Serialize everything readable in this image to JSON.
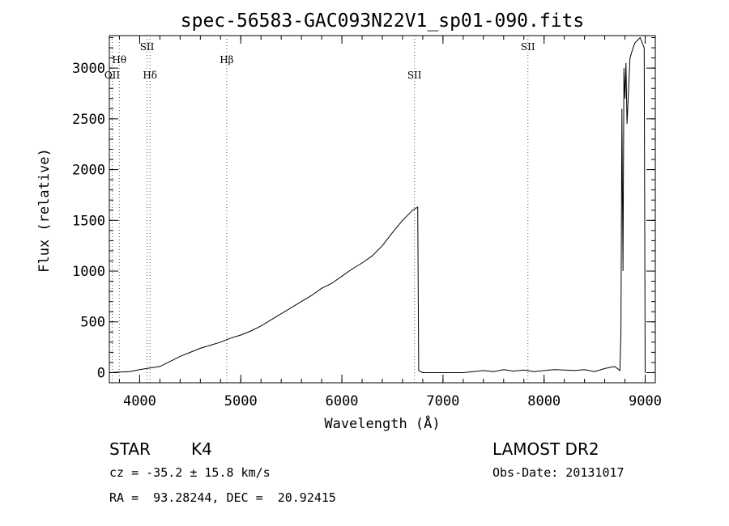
{
  "chart_data": {
    "type": "line",
    "title": "spec-56583-GAC093N22V1_sp01-090.fits",
    "xlabel": "Wavelength (Å)",
    "ylabel": "Flux (relative)",
    "xlim": [
      3700,
      9100
    ],
    "ylim": [
      -100,
      3320
    ],
    "x_ticks": [
      4000,
      5000,
      6000,
      7000,
      8000,
      9000
    ],
    "x_tick_labels": [
      "4000",
      "5000",
      "6000",
      "7000",
      "8000",
      "9000"
    ],
    "y_ticks": [
      0,
      500,
      1000,
      1500,
      2000,
      2500,
      3000
    ],
    "y_tick_labels": [
      "0",
      "500",
      "1000",
      "1500",
      "2000",
      "2500",
      "3000"
    ],
    "grid": false,
    "series": [
      {
        "x": [
          3700,
          3800,
          3900,
          4000,
          4100,
          4200,
          4300,
          4400,
          4500,
          4600,
          4700,
          4800,
          4900,
          5000,
          5100,
          5200,
          5300,
          5400,
          5500,
          5600,
          5700,
          5800,
          5900,
          6000,
          6100,
          6200,
          6300,
          6400,
          6500,
          6600,
          6700,
          6750,
          6760,
          6800,
          6900,
          7000,
          7100,
          7200,
          7300,
          7400,
          7500,
          7600,
          7700,
          7800,
          7900,
          8000,
          8100,
          8200,
          8300,
          8400,
          8500,
          8600,
          8700,
          8750,
          8760,
          8770,
          8780,
          8790,
          8800,
          8810,
          8820,
          8850,
          8880,
          8900,
          8930,
          8950,
          8970,
          8990,
          9000
        ],
        "y": [
          0,
          5,
          10,
          30,
          45,
          60,
          110,
          160,
          200,
          240,
          270,
          300,
          340,
          370,
          410,
          460,
          520,
          580,
          640,
          700,
          760,
          830,
          880,
          950,
          1020,
          1080,
          1150,
          1250,
          1380,
          1500,
          1600,
          1630,
          20,
          0,
          0,
          0,
          0,
          0,
          10,
          20,
          10,
          30,
          15,
          25,
          10,
          20,
          30,
          25,
          20,
          30,
          10,
          40,
          60,
          20,
          400,
          2600,
          1000,
          3000,
          2700,
          3050,
          2450,
          3100,
          3200,
          3250,
          3280,
          3300,
          3250,
          3200,
          0
        ]
      }
    ],
    "lines": [
      {
        "x": 3728,
        "label_html": "OII",
        "level": "low"
      },
      {
        "x": 3798,
        "label_html": "Hθ",
        "level": "mid"
      },
      {
        "x": 4073,
        "label_html": "SII",
        "level": "top"
      },
      {
        "x": 4102,
        "label_html": "Hδ",
        "level": "low"
      },
      {
        "x": 4861,
        "label_html": "Hβ",
        "level": "mid"
      },
      {
        "x": 6718,
        "label_html": "SII",
        "level": "low"
      },
      {
        "x": 7840,
        "label_html": "SII",
        "level": "top"
      }
    ]
  },
  "info": {
    "obj_class": "STAR",
    "subclass": "K4",
    "survey": "LAMOST DR2",
    "cz_text": "cz = -35.2 ± 15.8 km/s",
    "obs_date": "Obs-Date: 20131017",
    "coords": "RA =  93.28244, DEC =  20.92415"
  }
}
